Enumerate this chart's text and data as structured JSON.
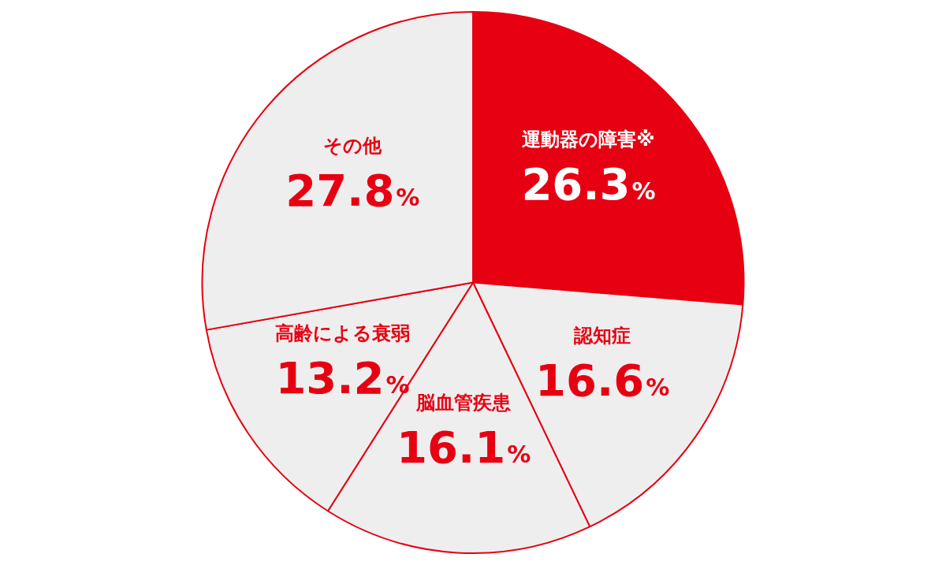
{
  "chart_data": {
    "type": "pie",
    "categories": [
      "運動器の障害※",
      "認知症",
      "脳血管疾患",
      "高齢による衰弱",
      "その他"
    ],
    "values": [
      26.3,
      16.6,
      16.1,
      13.2,
      27.8
    ],
    "colors": [
      "#e60012",
      "#eeeeee",
      "#eeeeee",
      "#eeeeee",
      "#eeeeee"
    ],
    "value_labels": [
      "26.3%",
      "16.6%",
      "16.1%",
      "13.2%",
      "27.8%"
    ],
    "legend": false
  }
}
